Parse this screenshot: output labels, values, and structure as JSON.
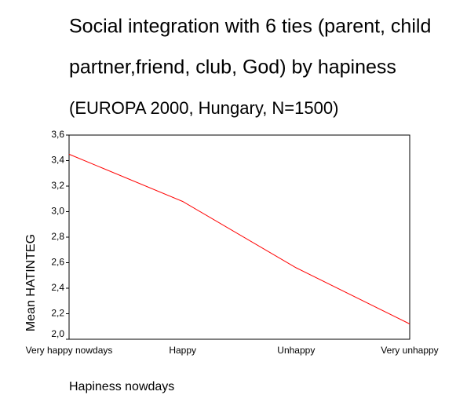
{
  "chart_data": {
    "type": "line",
    "title": [
      "Social integration with 6 ties (parent, child",
      "partner,friend, club, God) by  hapiness",
      "(EUROPA 2000, Hungary, N=1500)"
    ],
    "x_label": "Hapiness nowdays",
    "y_label": "Mean HATINTEG",
    "categories": [
      "Very happy nowdays",
      "Happy",
      "Unhappy",
      "Very unhappy"
    ],
    "series": [
      {
        "name": "Mean HATINTEG",
        "color": "#ff0000",
        "values": [
          3.45,
          3.08,
          2.56,
          2.12
        ]
      }
    ],
    "ylim": [
      2.0,
      3.6
    ],
    "yticks": [
      {
        "value": 2.0,
        "label": "2,0"
      },
      {
        "value": 2.2,
        "label": "2,2"
      },
      {
        "value": 2.4,
        "label": "2,4"
      },
      {
        "value": 2.6,
        "label": "2,6"
      },
      {
        "value": 2.8,
        "label": "2,8"
      },
      {
        "value": 3.0,
        "label": "3,0"
      },
      {
        "value": 3.2,
        "label": "3,2"
      },
      {
        "value": 3.4,
        "label": "3,4"
      },
      {
        "value": 3.6,
        "label": "3,6"
      }
    ],
    "grid": false
  }
}
